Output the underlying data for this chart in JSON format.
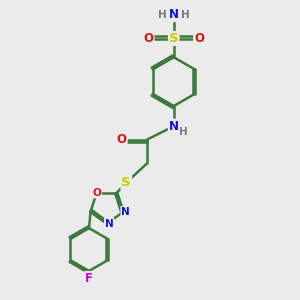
{
  "bg_color": "#ebebeb",
  "atom_colors": {
    "C": "#3a7a3a",
    "N": "#1010dd",
    "O": "#dd1010",
    "S": "#cccc00",
    "F": "#cc00cc",
    "H": "#7a7a7a"
  },
  "bond_color": "#3a7a3a",
  "bond_width": 1.8,
  "font_size": 8.5,
  "figsize": [
    3.0,
    3.0
  ],
  "dpi": 100
}
